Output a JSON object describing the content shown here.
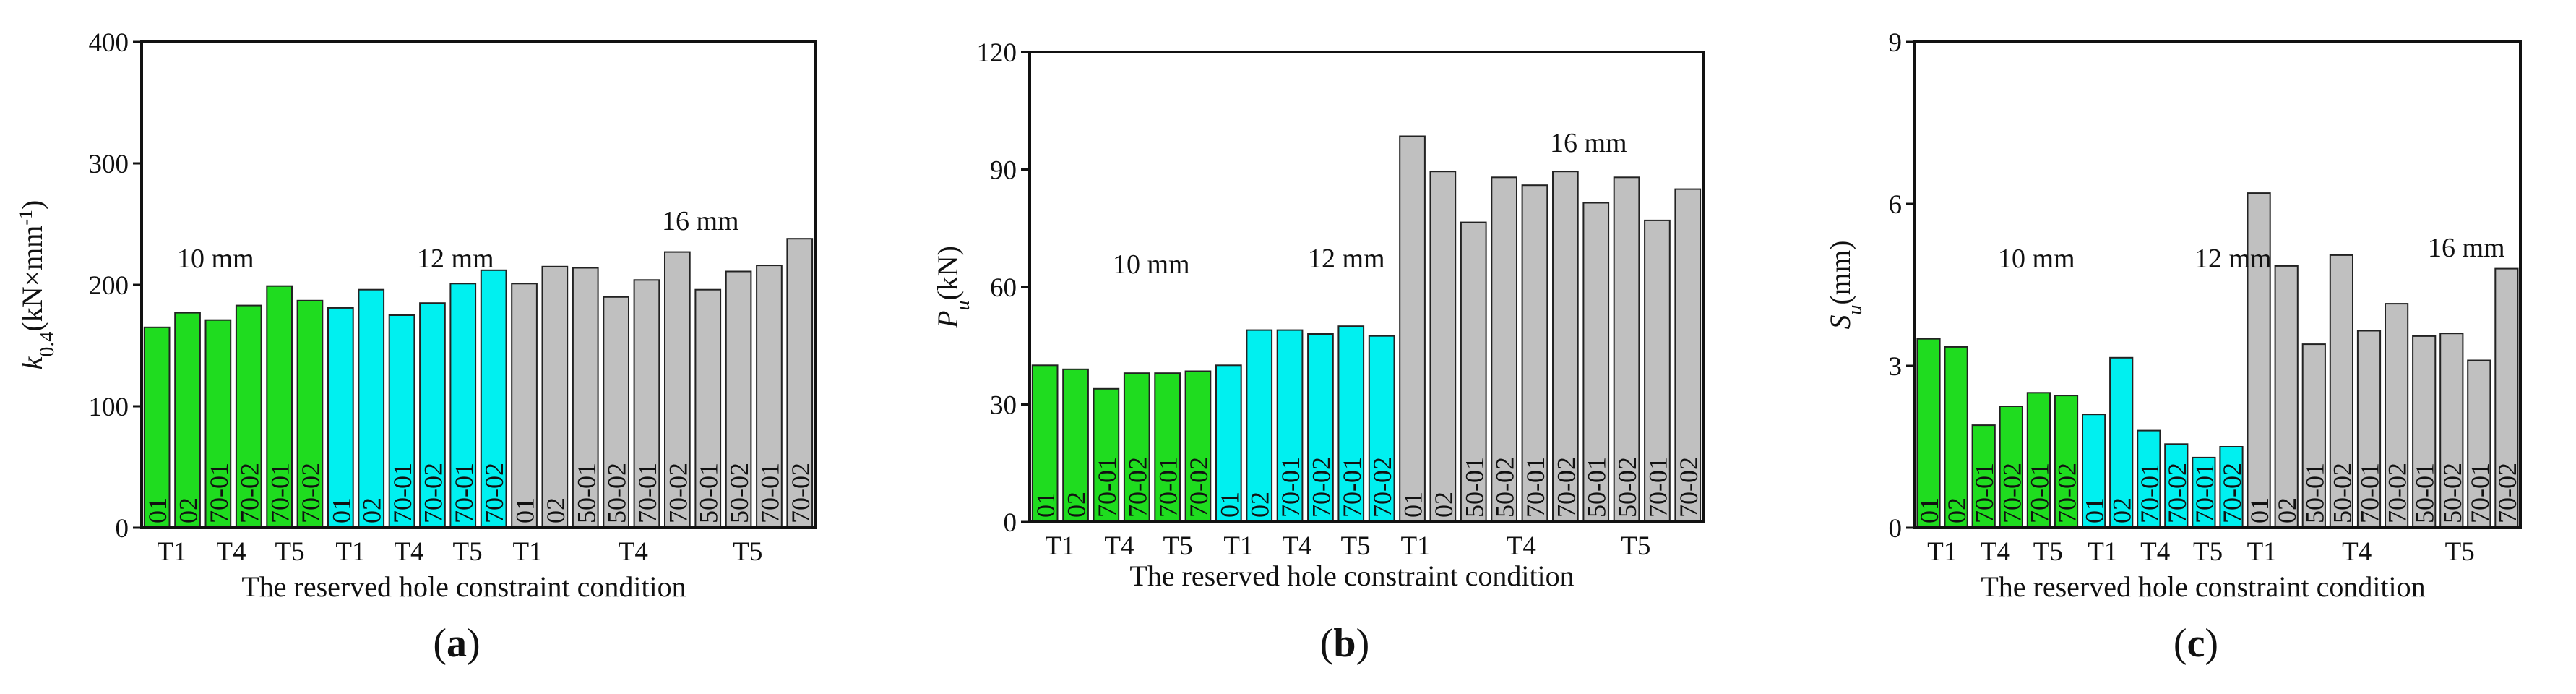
{
  "figure": {
    "description_labels_shared": true
  },
  "colors": {
    "10mm": "#1fdc1f",
    "12mm": "#00f0f0",
    "16mm": "#c0c0c0",
    "edge": "#222222"
  },
  "chart_data": [
    {
      "type": "bar",
      "panel_label": "(a)",
      "panel_label_parts": [
        "(",
        "a",
        ")"
      ],
      "ylabel_parts": [
        "k",
        "0.4",
        "(kN×mm",
        "-1",
        ")"
      ],
      "xlabel": "The reserved hole constraint condition",
      "ylim": [
        0,
        400
      ],
      "yticks": [
        "0",
        "100",
        "200",
        "300",
        "400"
      ],
      "group_labels": [
        "10 mm",
        "12 mm",
        "16 mm"
      ],
      "categories": [
        "01",
        "02",
        "70-01",
        "70-02",
        "70-01",
        "70-02",
        "01",
        "02",
        "70-01",
        "70-02",
        "70-01",
        "70-02",
        "01",
        "02",
        "50-01",
        "50-02",
        "70-01",
        "70-02",
        "50-01",
        "50-02",
        "70-01",
        "70-02"
      ],
      "groups": [
        "10mm",
        "10mm",
        "10mm",
        "10mm",
        "10mm",
        "10mm",
        "12mm",
        "12mm",
        "12mm",
        "12mm",
        "12mm",
        "12mm",
        "16mm",
        "16mm",
        "16mm",
        "16mm",
        "16mm",
        "16mm",
        "16mm",
        "16mm",
        "16mm",
        "16mm"
      ],
      "values": [
        165,
        177,
        171,
        183,
        199,
        187,
        181,
        196,
        175,
        185,
        201,
        212,
        201,
        215,
        214,
        190,
        204,
        227,
        196,
        211,
        216,
        238
      ],
      "x_group_ticks": [
        "T1",
        "T4",
        "T5",
        "T1",
        "T4",
        "T5",
        "T1",
        "T4",
        "T5"
      ]
    },
    {
      "type": "bar",
      "panel_label": "(b)",
      "panel_label_parts": [
        "(",
        "b",
        ")"
      ],
      "ylabel_parts": [
        "P",
        "u",
        "(kN)"
      ],
      "xlabel": "The reserved hole constraint condition",
      "ylim": [
        0,
        120
      ],
      "yticks": [
        "0",
        "30",
        "60",
        "90",
        "120"
      ],
      "group_labels": [
        "10 mm",
        "12 mm",
        "16 mm"
      ],
      "categories": [
        "01",
        "02",
        "70-01",
        "70-02",
        "70-01",
        "70-02",
        "01",
        "02",
        "70-01",
        "70-02",
        "70-01",
        "70-02",
        "01",
        "02",
        "50-01",
        "50-02",
        "70-01",
        "70-02",
        "50-01",
        "50-02",
        "70-01",
        "70-02"
      ],
      "groups": [
        "10mm",
        "10mm",
        "10mm",
        "10mm",
        "10mm",
        "10mm",
        "12mm",
        "12mm",
        "12mm",
        "12mm",
        "12mm",
        "12mm",
        "16mm",
        "16mm",
        "16mm",
        "16mm",
        "16mm",
        "16mm",
        "16mm",
        "16mm",
        "16mm",
        "16mm"
      ],
      "values": [
        40,
        39,
        34,
        38,
        38,
        38.5,
        40,
        49,
        49,
        48,
        50,
        47.5,
        98.5,
        89.5,
        76.5,
        88,
        86,
        89.5,
        81.5,
        88,
        77,
        85
      ],
      "x_group_ticks": [
        "T1",
        "T4",
        "T5",
        "T1",
        "T4",
        "T5",
        "T1",
        "T4",
        "T5"
      ]
    },
    {
      "type": "bar",
      "panel_label": "(c)",
      "panel_label_parts": [
        "(",
        "c",
        ")"
      ],
      "ylabel_parts": [
        "S",
        "u",
        "(mm)"
      ],
      "xlabel": "The reserved hole constraint condition",
      "ylim": [
        0,
        9
      ],
      "yticks": [
        "0",
        "3",
        "6",
        "9"
      ],
      "group_labels": [
        "10 mm",
        "12 mm",
        "16 mm"
      ],
      "categories": [
        "01",
        "02",
        "70-01",
        "70-02",
        "70-01",
        "70-02",
        "01",
        "02",
        "70-01",
        "70-02",
        "70-01",
        "70-02",
        "01",
        "02",
        "50-01",
        "50-02",
        "70-01",
        "70-02",
        "50-01",
        "50-02",
        "70-01",
        "70-02"
      ],
      "groups": [
        "10mm",
        "10mm",
        "10mm",
        "10mm",
        "10mm",
        "10mm",
        "12mm",
        "12mm",
        "12mm",
        "12mm",
        "12mm",
        "12mm",
        "16mm",
        "16mm",
        "16mm",
        "16mm",
        "16mm",
        "16mm",
        "16mm",
        "16mm",
        "16mm",
        "16mm"
      ],
      "values": [
        3.5,
        3.35,
        1.9,
        2.25,
        2.5,
        2.45,
        2.1,
        3.15,
        1.8,
        1.55,
        1.3,
        1.5,
        6.2,
        4.85,
        3.4,
        5.05,
        3.65,
        4.15,
        3.55,
        3.6,
        3.1,
        4.8
      ],
      "x_group_ticks": [
        "T1",
        "T4",
        "T5",
        "T1",
        "T4",
        "T5",
        "T1",
        "T4",
        "T5"
      ]
    }
  ]
}
